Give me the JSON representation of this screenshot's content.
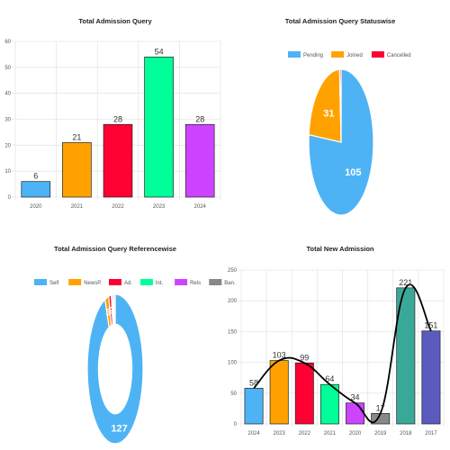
{
  "colors": {
    "blue": "#4db3f5",
    "orange": "#ffa200",
    "red": "#ff0033",
    "green": "#00ff99",
    "purple": "#cc44ff",
    "gray": "#888888",
    "teal": "#3aa899",
    "indigo": "#5a5abf",
    "black": "#000000"
  },
  "chart_data": [
    {
      "type": "bar",
      "title": "Total Admission Query",
      "categories": [
        "2020",
        "2021",
        "2022",
        "2023",
        "2024"
      ],
      "values": [
        6,
        21,
        28,
        54,
        28
      ],
      "bar_colors": [
        "#4db3f5",
        "#ffa200",
        "#ff0033",
        "#00ff99",
        "#cc44ff"
      ],
      "ylim": [
        0,
        60
      ],
      "yticks": [
        0,
        10,
        20,
        30,
        40,
        50,
        60
      ],
      "grid": true
    },
    {
      "type": "pie",
      "title": "Total Admission Query Statuswise",
      "labels": [
        "Pending",
        "Joined",
        "Cancelled"
      ],
      "values": [
        105,
        31,
        1
      ],
      "colors": [
        "#4db3f5",
        "#ffa200",
        "#ff0033"
      ],
      "legend": "top"
    },
    {
      "type": "pie",
      "variant": "doughnut",
      "title": "Total Admission Query Referencewise",
      "labels": [
        "Self",
        "NewsP.",
        "Ad.",
        "Int.",
        "Rels",
        "Ban."
      ],
      "values": [
        127,
        3,
        2,
        1,
        1,
        1
      ],
      "colors": [
        "#4db3f5",
        "#ffa200",
        "#ff0033",
        "#00ff99",
        "#cc44ff",
        "#888888"
      ],
      "shown_labels": [
        "127",
        "3",
        "2"
      ],
      "legend": "top"
    },
    {
      "type": "bar",
      "title": "Total New Admission",
      "categories": [
        "2024",
        "2023",
        "2022",
        "2021",
        "2020",
        "2019",
        "2018",
        "2017"
      ],
      "values": [
        58,
        103,
        99,
        64,
        34,
        17,
        221,
        151
      ],
      "bar_colors": [
        "#4db3f5",
        "#ffa200",
        "#ff0033",
        "#00ff99",
        "#cc44ff",
        "#888888",
        "#3aa899",
        "#5a5abf"
      ],
      "ylim": [
        0,
        250
      ],
      "yticks": [
        0,
        50,
        100,
        150,
        200,
        250
      ],
      "grid": true,
      "overlay": "smooth-line"
    }
  ]
}
